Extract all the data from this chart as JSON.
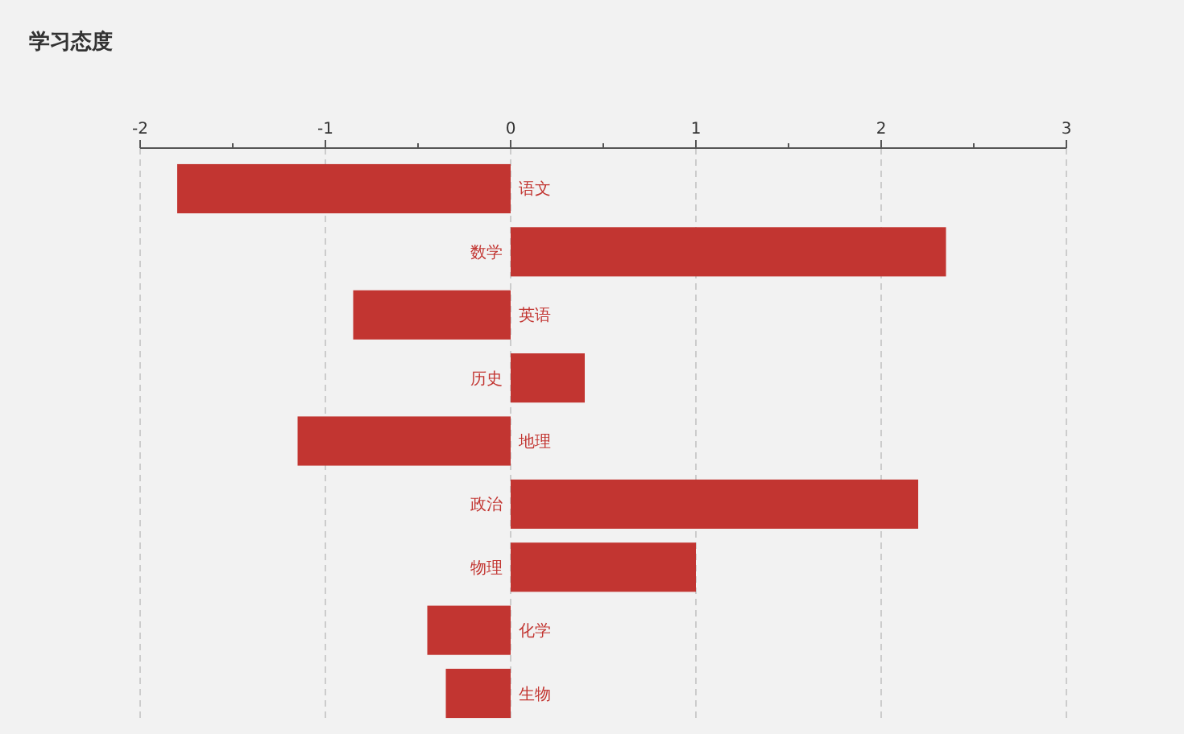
{
  "chart_data": {
    "type": "bar",
    "title": "学习态度",
    "orientation": "horizontal",
    "categories": [
      "语文",
      "数学",
      "英语",
      "历史",
      "地理",
      "政治",
      "物理",
      "化学",
      "生物"
    ],
    "values": [
      -1.8,
      2.35,
      -0.85,
      0.4,
      -1.15,
      2.2,
      1.0,
      -0.45,
      -0.35
    ],
    "color": "#c23531",
    "xlim": [
      -2,
      3
    ],
    "xticks": [
      -2,
      {
        "value": -1.5,
        "label": null
      },
      -1,
      {
        "value": -0.5,
        "label": null
      },
      0,
      {
        "value": 0.5,
        "label": null
      },
      1,
      {
        "value": 1.5,
        "label": null
      },
      2,
      {
        "value": 2.5,
        "label": null
      },
      3
    ],
    "grid": "x"
  }
}
